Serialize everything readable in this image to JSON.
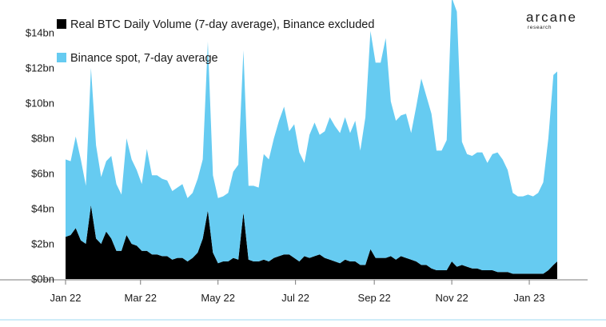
{
  "brand": {
    "name": "arcane",
    "tagline": "research"
  },
  "chart_data": {
    "type": "area",
    "title": "",
    "xlabel": "",
    "ylabel": "",
    "ylim": [
      0,
      15
    ],
    "yticks": [
      0,
      2,
      4,
      6,
      8,
      10,
      12,
      14
    ],
    "ytick_labels": [
      "$0bn",
      "$2bn",
      "$4bn",
      "$6bn",
      "$8bn",
      "$10bn",
      "$12bn",
      "$14bn"
    ],
    "xlim": [
      "2022-01-01",
      "2023-01-23"
    ],
    "xticks": [
      "2022-01-01",
      "2022-03-01",
      "2022-05-01",
      "2022-07-01",
      "2022-09-01",
      "2022-11-01",
      "2023-01-01"
    ],
    "xtick_labels": [
      "Jan 22",
      "Mar 22",
      "May 22",
      "Jul 22",
      "Sep 22",
      "Nov 22",
      "Jan 23"
    ],
    "legend_position": "top-left",
    "grid": false,
    "stacked": true,
    "x": [
      "2022-01-01",
      "2022-01-05",
      "2022-01-09",
      "2022-01-13",
      "2022-01-17",
      "2022-01-21",
      "2022-01-25",
      "2022-01-29",
      "2022-02-02",
      "2022-02-06",
      "2022-02-10",
      "2022-02-14",
      "2022-02-18",
      "2022-02-22",
      "2022-02-26",
      "2022-03-02",
      "2022-03-06",
      "2022-03-10",
      "2022-03-14",
      "2022-03-18",
      "2022-03-22",
      "2022-03-26",
      "2022-03-30",
      "2022-04-03",
      "2022-04-07",
      "2022-04-11",
      "2022-04-15",
      "2022-04-19",
      "2022-04-23",
      "2022-04-27",
      "2022-05-01",
      "2022-05-05",
      "2022-05-09",
      "2022-05-13",
      "2022-05-17",
      "2022-05-21",
      "2022-05-25",
      "2022-05-29",
      "2022-06-02",
      "2022-06-06",
      "2022-06-10",
      "2022-06-14",
      "2022-06-18",
      "2022-06-22",
      "2022-06-26",
      "2022-06-30",
      "2022-07-04",
      "2022-07-08",
      "2022-07-12",
      "2022-07-16",
      "2022-07-20",
      "2022-07-24",
      "2022-07-28",
      "2022-08-01",
      "2022-08-05",
      "2022-08-09",
      "2022-08-13",
      "2022-08-17",
      "2022-08-21",
      "2022-08-25",
      "2022-08-29",
      "2022-09-02",
      "2022-09-06",
      "2022-09-10",
      "2022-09-14",
      "2022-09-18",
      "2022-09-22",
      "2022-09-26",
      "2022-09-30",
      "2022-10-04",
      "2022-10-08",
      "2022-10-12",
      "2022-10-16",
      "2022-10-20",
      "2022-10-24",
      "2022-10-28",
      "2022-11-01",
      "2022-11-05",
      "2022-11-09",
      "2022-11-13",
      "2022-11-17",
      "2022-11-21",
      "2022-11-25",
      "2022-11-29",
      "2022-12-03",
      "2022-12-07",
      "2022-12-11",
      "2022-12-15",
      "2022-12-19",
      "2022-12-23",
      "2022-12-27",
      "2022-12-31",
      "2023-01-04",
      "2023-01-08",
      "2023-01-12",
      "2023-01-16",
      "2023-01-20",
      "2023-01-23"
    ],
    "series": [
      {
        "name": "Real BTC Daily Volume (7-day average), Binance excluded",
        "color": "#000000",
        "values": [
          2.4,
          2.5,
          2.9,
          2.2,
          2.0,
          4.2,
          2.3,
          2.0,
          2.7,
          2.3,
          1.6,
          1.6,
          2.5,
          2.0,
          1.9,
          1.6,
          1.6,
          1.4,
          1.4,
          1.3,
          1.3,
          1.1,
          1.2,
          1.2,
          1.0,
          1.2,
          1.5,
          2.3,
          3.9,
          1.5,
          0.9,
          1.0,
          1.0,
          1.2,
          1.1,
          3.8,
          1.1,
          1.0,
          1.0,
          1.1,
          1.0,
          1.2,
          1.3,
          1.4,
          1.4,
          1.2,
          1.0,
          1.3,
          1.2,
          1.3,
          1.4,
          1.2,
          1.1,
          1.0,
          0.9,
          1.1,
          1.0,
          1.0,
          0.8,
          0.8,
          1.7,
          1.2,
          1.2,
          1.2,
          1.3,
          1.1,
          1.3,
          1.2,
          1.1,
          1.0,
          0.8,
          0.8,
          0.6,
          0.5,
          0.5,
          0.5,
          1.0,
          0.7,
          0.8,
          0.7,
          0.6,
          0.6,
          0.5,
          0.5,
          0.5,
          0.4,
          0.4,
          0.4,
          0.3,
          0.3,
          0.3,
          0.3,
          0.3,
          0.3,
          0.3,
          0.5,
          0.8,
          1.0
        ]
      },
      {
        "name": "Binance spot, 7-day average",
        "color": "#66cbf1",
        "values": [
          4.4,
          4.2,
          5.2,
          4.6,
          3.3,
          7.8,
          5.3,
          3.8,
          4.0,
          4.7,
          3.8,
          3.2,
          5.5,
          4.8,
          4.3,
          3.8,
          5.8,
          4.5,
          4.5,
          4.4,
          4.3,
          3.9,
          4.0,
          4.2,
          3.6,
          3.7,
          4.2,
          4.5,
          9.6,
          4.4,
          3.7,
          3.7,
          3.9,
          4.9,
          5.4,
          9.2,
          4.2,
          4.3,
          4.2,
          6.0,
          5.8,
          6.8,
          7.7,
          8.4,
          7.0,
          7.6,
          6.2,
          5.3,
          7.0,
          7.6,
          6.8,
          7.2,
          8.1,
          7.7,
          7.4,
          8.1,
          7.3,
          8.0,
          6.5,
          8.4,
          12.4,
          11.1,
          11.1,
          12.5,
          8.8,
          7.9,
          8.0,
          8.2,
          7.2,
          8.8,
          10.6,
          9.6,
          8.8,
          6.8,
          6.8,
          7.4,
          15.0,
          14.5,
          7.0,
          6.4,
          6.4,
          6.6,
          6.7,
          6.1,
          6.6,
          6.8,
          6.4,
          5.8,
          4.6,
          4.4,
          4.4,
          4.5,
          4.4,
          4.6,
          5.2,
          7.5,
          10.8,
          10.8
        ]
      }
    ]
  }
}
